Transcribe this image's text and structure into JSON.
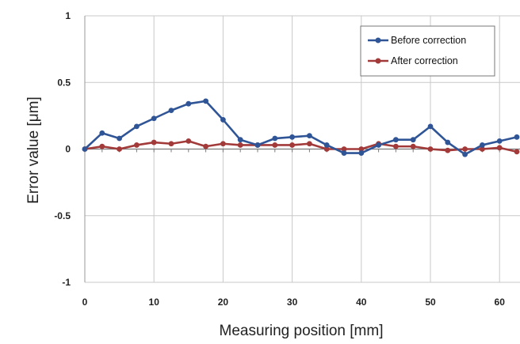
{
  "chart_data": {
    "type": "line",
    "title": "",
    "xlabel": "Measuring position [mm]",
    "ylabel": "Error value [μm]",
    "xlim": [
      0,
      63
    ],
    "ylim": [
      -1,
      1
    ],
    "x_ticks": [
      "0",
      "10",
      "20",
      "30",
      "40",
      "50",
      "60"
    ],
    "y_ticks": [
      "1",
      "0.5",
      "0",
      "-0.5",
      "-1"
    ],
    "grid": true,
    "legend_position": "top-right",
    "x": [
      0,
      2.5,
      5,
      7.5,
      10,
      12.5,
      15,
      17.5,
      20,
      22.5,
      25,
      27.5,
      30,
      32.5,
      35,
      37.5,
      40,
      42.5,
      45,
      47.5,
      50,
      52.5,
      55,
      57.5,
      60,
      62.5
    ],
    "series": [
      {
        "name": "Before correction",
        "color": "#2f5597",
        "values": [
          0,
          0.12,
          0.08,
          0.17,
          0.23,
          0.29,
          0.34,
          0.36,
          0.22,
          0.07,
          0.03,
          0.08,
          0.09,
          0.1,
          0.03,
          -0.03,
          -0.03,
          0.03,
          0.07,
          0.07,
          0.17,
          0.05,
          -0.04,
          0.03,
          0.06,
          0.09
        ]
      },
      {
        "name": "After correction",
        "color": "#a33a3a",
        "values": [
          0,
          0.02,
          0,
          0.03,
          0.05,
          0.04,
          0.06,
          0.02,
          0.04,
          0.03,
          0.03,
          0.03,
          0.03,
          0.04,
          0,
          0,
          0,
          0.04,
          0.02,
          0.02,
          0,
          -0.01,
          0,
          0,
          0.01,
          -0.02
        ]
      }
    ]
  }
}
